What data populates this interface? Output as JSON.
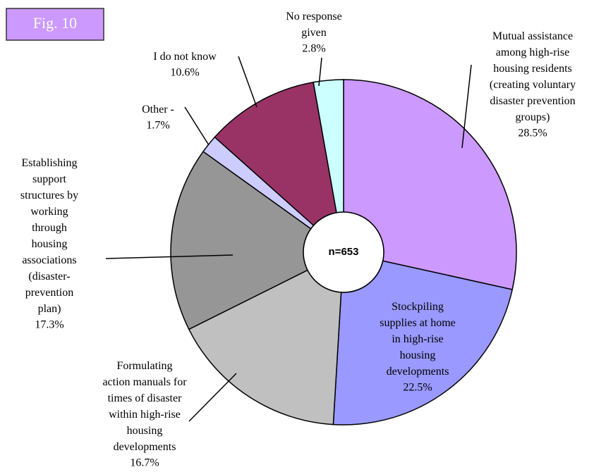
{
  "chart_data": {
    "type": "donut",
    "tag": "Fig. 10",
    "center_label": "n=653",
    "categories": [
      "Mutual assistance\namong high-rise\nhousing residents\n(creating voluntary\ndisaster prevention\ngroups)",
      "Stockpiling\nsupplies at home\nin high-rise\nhousing\ndevelopments",
      "Formulating\naction manuals for\ntimes of disaster\nwithin high-rise\nhousing\ndevelopments",
      "Establishing\nsupport\nstructures by\nworking\nthrough\nhousing\nassociations\n(disaster-\nprevention\nplan)",
      "Other -",
      "I do not know",
      "No response\ngiven"
    ],
    "values": [
      28.5,
      22.5,
      16.7,
      17.3,
      1.7,
      10.6,
      2.8
    ],
    "value_labels": [
      "28.5%",
      "22.5%",
      "16.7%",
      "17.3%",
      "1.7%",
      "10.6%",
      "2.8%"
    ],
    "colors": [
      "#cc99ff",
      "#9999ff",
      "#c0c0c0",
      "#969696",
      "#ccccff",
      "#993366",
      "#ccffff"
    ]
  }
}
